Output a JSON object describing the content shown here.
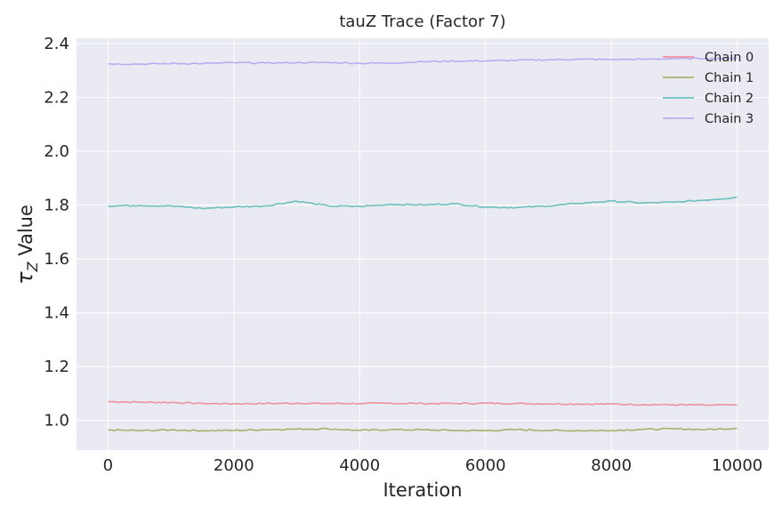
{
  "chart_data": {
    "type": "line",
    "title": "tauZ Trace (Factor 7)",
    "xlabel": "Iteration",
    "ylabel_symbol": "τ",
    "ylabel_subscript": "Z",
    "ylabel_suffix": " Value",
    "xlim": [
      -500,
      10500
    ],
    "ylim": [
      0.89,
      2.42
    ],
    "xticks": [
      0,
      2000,
      4000,
      6000,
      8000,
      10000
    ],
    "yticks": [
      1.0,
      1.2,
      1.4,
      1.6,
      1.8,
      2.0,
      2.2,
      2.4
    ],
    "ytick_labels": [
      "1.0",
      "1.2",
      "1.4",
      "1.6",
      "1.8",
      "2.0",
      "2.2",
      "2.4"
    ],
    "grid": true,
    "legend_position": "top-right",
    "x": [
      0,
      500,
      1000,
      1500,
      2000,
      2500,
      3000,
      3500,
      4000,
      4500,
      5000,
      5500,
      6000,
      6500,
      7000,
      7500,
      8000,
      8500,
      9000,
      9500,
      10000
    ],
    "series": [
      {
        "name": "Chain 0",
        "color": "#f0919f",
        "values": [
          1.07,
          1.068,
          1.067,
          1.063,
          1.062,
          1.063,
          1.064,
          1.063,
          1.063,
          1.064,
          1.063,
          1.063,
          1.064,
          1.063,
          1.062,
          1.061,
          1.061,
          1.059,
          1.058,
          1.057,
          1.057
        ]
      },
      {
        "name": "Chain 1",
        "color": "#a3b36a",
        "values": [
          0.965,
          0.962,
          0.965,
          0.962,
          0.963,
          0.966,
          0.968,
          0.969,
          0.963,
          0.966,
          0.965,
          0.963,
          0.962,
          0.966,
          0.963,
          0.962,
          0.963,
          0.967,
          0.969,
          0.966,
          0.971
        ]
      },
      {
        "name": "Chain 2",
        "color": "#6ec0bd",
        "values": [
          1.797,
          1.799,
          1.797,
          1.788,
          1.793,
          1.797,
          1.815,
          1.797,
          1.795,
          1.803,
          1.801,
          1.805,
          1.793,
          1.791,
          1.797,
          1.807,
          1.815,
          1.808,
          1.811,
          1.819,
          1.829
        ]
      },
      {
        "name": "Chain 3",
        "color": "#b7aef1",
        "values": [
          2.325,
          2.324,
          2.326,
          2.326,
          2.329,
          2.328,
          2.329,
          2.33,
          2.327,
          2.328,
          2.333,
          2.335,
          2.336,
          2.338,
          2.34,
          2.342,
          2.341,
          2.342,
          2.344,
          2.345,
          2.346
        ]
      }
    ]
  }
}
